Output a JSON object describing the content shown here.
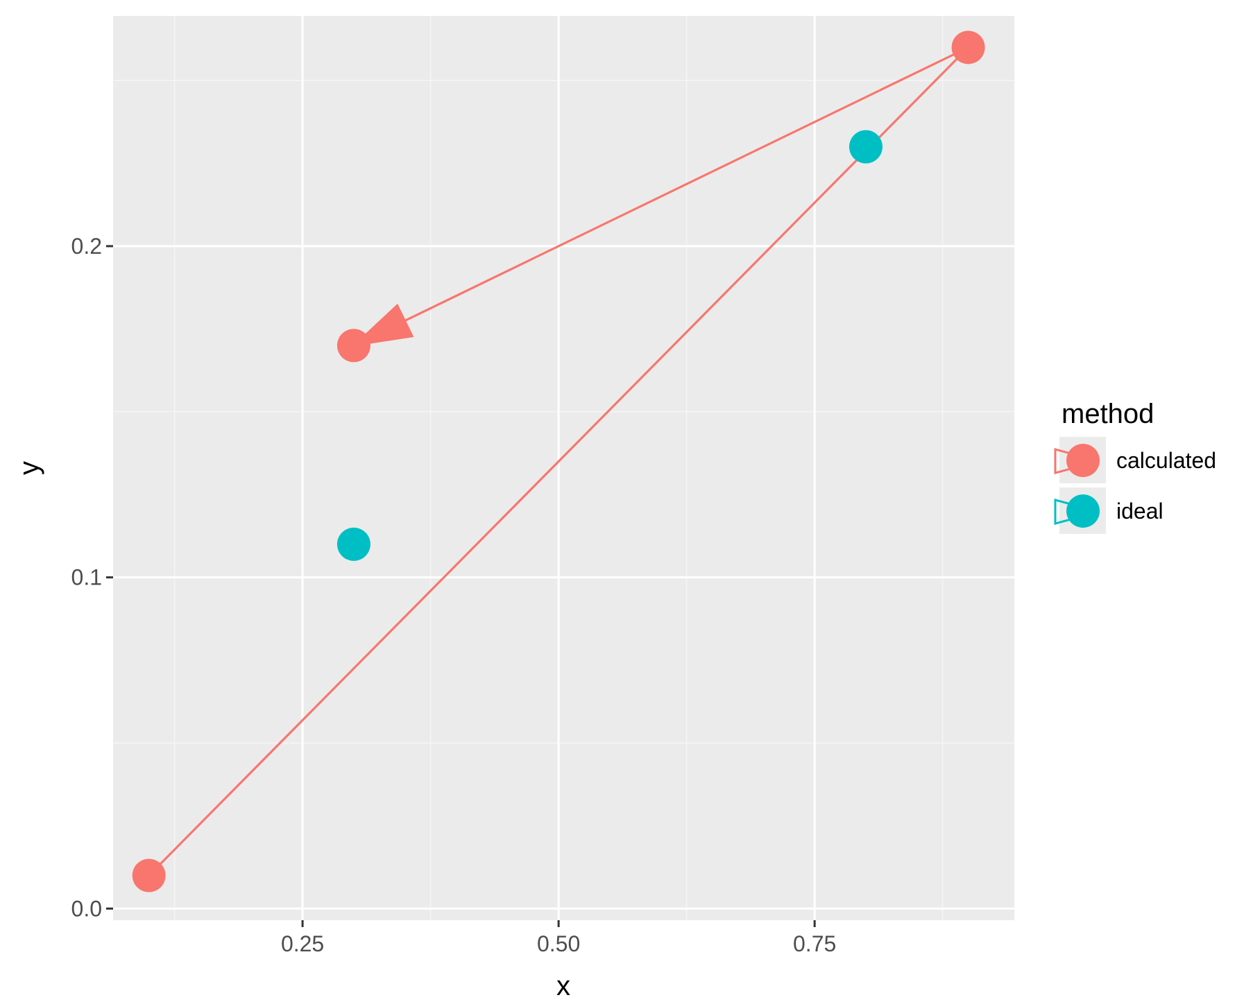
{
  "chart_data": {
    "type": "scatter",
    "title": "",
    "xlabel": "x",
    "ylabel": "y",
    "xlim": [
      0.065,
      0.945
    ],
    "ylim": [
      -0.0035,
      0.2695
    ],
    "x_ticks": [
      0.25,
      0.5,
      0.75
    ],
    "x_tick_labels": [
      "0.25",
      "0.50",
      "0.75"
    ],
    "y_ticks": [
      0.0,
      0.1,
      0.2
    ],
    "y_tick_labels": [
      "0.0",
      "0.1",
      "0.2"
    ],
    "grid": true,
    "legend": {
      "title": "method",
      "position": "right",
      "entries": [
        {
          "label": "calculated",
          "color": "#F8766D"
        },
        {
          "label": "ideal",
          "color": "#00BFC4"
        }
      ]
    },
    "series": [
      {
        "name": "calculated",
        "color": "#F8766D",
        "points": [
          {
            "x": 0.1,
            "y": 0.01
          },
          {
            "x": 0.9,
            "y": 0.26
          },
          {
            "x": 0.3,
            "y": 0.17
          }
        ],
        "path_order": [
          0,
          1,
          2
        ],
        "arrow_at_end": true
      },
      {
        "name": "ideal",
        "color": "#00BFC4",
        "points": [
          {
            "x": 0.3,
            "y": 0.11
          },
          {
            "x": 0.8,
            "y": 0.23
          }
        ]
      }
    ],
    "colors": {
      "panel_background": "#EBEBEB",
      "grid_major": "#FFFFFF",
      "grid_minor": "#F5F5F5",
      "tick_label": "#4D4D4D",
      "tick_mark": "#333333"
    }
  }
}
